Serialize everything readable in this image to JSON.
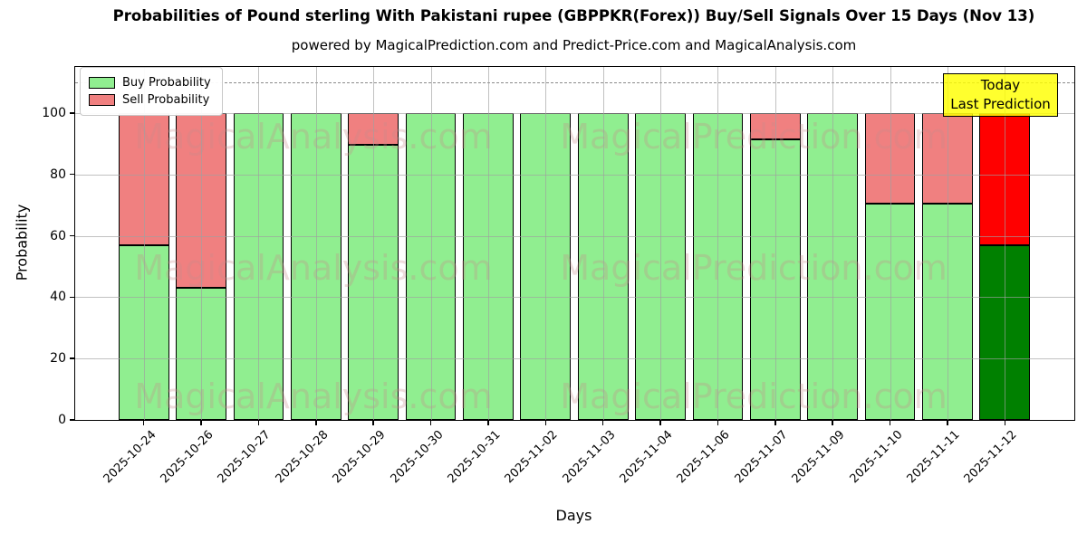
{
  "figure": {
    "title": "Probabilities of Pound sterling With Pakistani rupee (GBPPKR(Forex)) Buy/Sell Signals Over 15 Days (Nov 13)",
    "subtitle": "powered by MagicalPrediction.com and Predict-Price.com and MagicalAnalysis.com"
  },
  "chart_data": {
    "type": "bar",
    "stacked": true,
    "title": "Probabilities of Pound sterling With Pakistani rupee (GBPPKR(Forex)) Buy/Sell Signals Over 15 Days (Nov 13)",
    "subtitle": "powered by MagicalPrediction.com and Predict-Price.com and MagicalAnalysis.com",
    "categories": [
      "2025-10-24",
      "2025-10-26",
      "2025-10-27",
      "2025-10-28",
      "2025-10-29",
      "2025-10-30",
      "2025-10-31",
      "2025-11-02",
      "2025-11-03",
      "2025-11-04",
      "2025-11-06",
      "2025-11-07",
      "2025-11-09",
      "2025-11-10",
      "2025-11-11",
      "2025-11-12"
    ],
    "series": [
      {
        "name": "Buy Probability",
        "color": "#90EE90",
        "today_color": "#008000",
        "values": [
          57,
          43,
          100,
          100,
          89.5,
          100,
          100,
          100,
          100,
          100,
          100,
          91.5,
          100,
          70.5,
          70.5,
          57
        ]
      },
      {
        "name": "Sell Probability",
        "color": "#F08080",
        "today_color": "#FF0000",
        "values": [
          43,
          57,
          0,
          0,
          10.5,
          0,
          0,
          0,
          0,
          0,
          0,
          8.5,
          0,
          29.5,
          29.5,
          43
        ]
      }
    ],
    "today_index": 15,
    "xlabel": "Days",
    "ylabel": "Probability",
    "yticks": [
      0,
      20,
      40,
      60,
      80,
      100
    ],
    "ylim": [
      0,
      115
    ],
    "dashed_line_y": 110,
    "grid": true,
    "legend_position": "upper-left",
    "annotation": {
      "lines": [
        "Today",
        "Last Prediction"
      ],
      "bg_color": "#FFFF00"
    },
    "watermarks": [
      "MagicalAnalysis.com",
      "MagicalPrediction.com"
    ]
  }
}
